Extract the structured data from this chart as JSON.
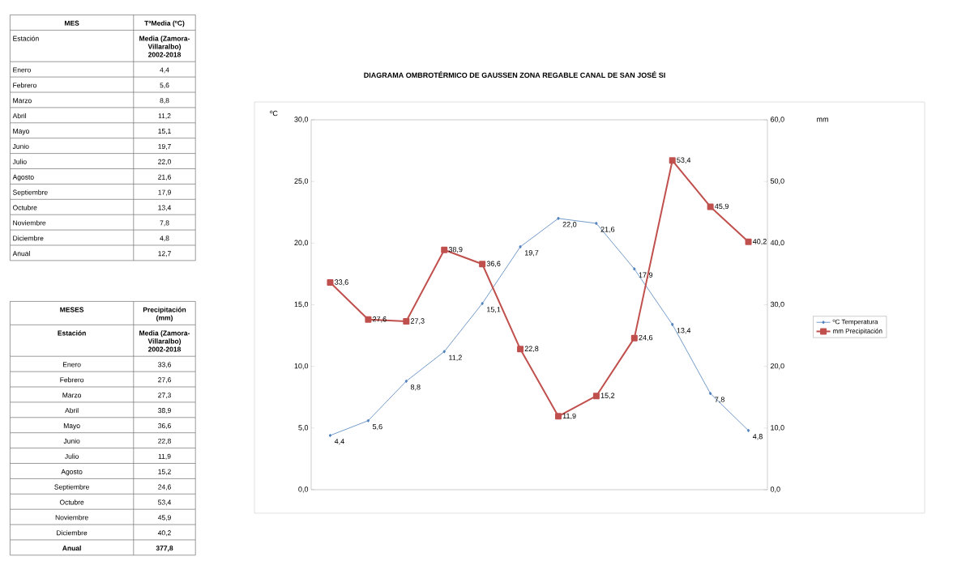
{
  "chart_data": {
    "type": "line",
    "title": "DIAGRAMA OMBROTÉRMICO DE GAUSSEN ZONA REGABLE CANAL DE SAN JOSÉ SI",
    "ylabel": "ºC",
    "y2label": "mm",
    "categories": [
      null,
      null,
      null,
      null,
      null,
      null,
      null,
      null,
      null,
      null,
      null,
      null
    ],
    "series": [
      {
        "name": "ºC Temperatura",
        "color": "#4f81bd",
        "marker": "diamond",
        "values": [
          4.4,
          5.6,
          8.8,
          11.2,
          15.1,
          19.7,
          22.0,
          21.6,
          17.9,
          13.4,
          7.8,
          4.8
        ],
        "value_labels": [
          "4,4",
          "5,6",
          "8,8",
          "11,2",
          "15,1",
          "19,7",
          "22,0",
          "21,6",
          "17,9",
          "13,4",
          "7,8",
          "4,8"
        ]
      },
      {
        "name": "mm Precipitación",
        "color": "#c0504d",
        "marker": "square",
        "axis": "y2",
        "values": [
          33.6,
          27.6,
          27.3,
          38.9,
          36.6,
          22.8,
          11.9,
          15.2,
          24.6,
          53.4,
          45.9,
          40.2
        ],
        "value_labels": [
          "33,6",
          "27,6",
          "27,3",
          "38,9",
          "36,6",
          "22,8",
          "11,9",
          "15,2",
          "24,6",
          "53,4",
          "45,9",
          "40,2"
        ]
      }
    ],
    "ylim": [
      0,
      30
    ],
    "yticks": [
      {
        "value": 0,
        "label": "0,0"
      },
      {
        "value": 5,
        "label": "5,0"
      },
      {
        "value": 10,
        "label": "10,0"
      },
      {
        "value": 15,
        "label": "15,0"
      },
      {
        "value": 20,
        "label": "20,0"
      },
      {
        "value": 25,
        "label": "25,0"
      },
      {
        "value": 30,
        "label": "30,0"
      }
    ],
    "y2lim": [
      0,
      60
    ],
    "y2ticks": [
      {
        "value": 0,
        "label": "0,0"
      },
      {
        "value": 10,
        "label": "10,0"
      },
      {
        "value": 20,
        "label": "20,0"
      },
      {
        "value": 30,
        "label": "30,0"
      },
      {
        "value": 40,
        "label": "40,0"
      },
      {
        "value": 50,
        "label": "50,0"
      },
      {
        "value": 60,
        "label": "60,0"
      }
    ],
    "legend": "right",
    "grid": false,
    "line_style": "solid",
    "annotations": [
      "MES",
      "TªMedia (ºC)",
      "Estación",
      "Media (Zamora-Villaralbo) 2002-2018",
      "Enero",
      "4,4",
      "Febrero",
      "5,6",
      "Marzo",
      "8,8",
      "Abril",
      "11,2",
      "Mayo",
      "15,1",
      "Junio",
      "19,7",
      "Julio",
      "22,0",
      "Agosto",
      "21,6",
      "Septiembre",
      "17,9",
      "Octubre",
      "13,4",
      "Noviembre",
      "7,8",
      "Diciembre",
      "4,8",
      "Anual",
      "12,7",
      "MESES",
      "Precipitación (mm)",
      "Estación",
      "Media (Zamora-Villaralbo) 2002-2018",
      "Enero",
      "33,6",
      "Febrero",
      "27,6",
      "Marzo",
      "27,3",
      "Abril",
      "38,9",
      "Mayo",
      "36,6",
      "Junio",
      "22,8",
      "Julio",
      "11,9",
      "Agosto",
      "15,2",
      "Septiembre",
      "24,6",
      "Octubre",
      "53,4",
      "Noviembre",
      "45,9",
      "Diciembre",
      "40,2",
      "Anual",
      "377,8"
    ]
  }
}
